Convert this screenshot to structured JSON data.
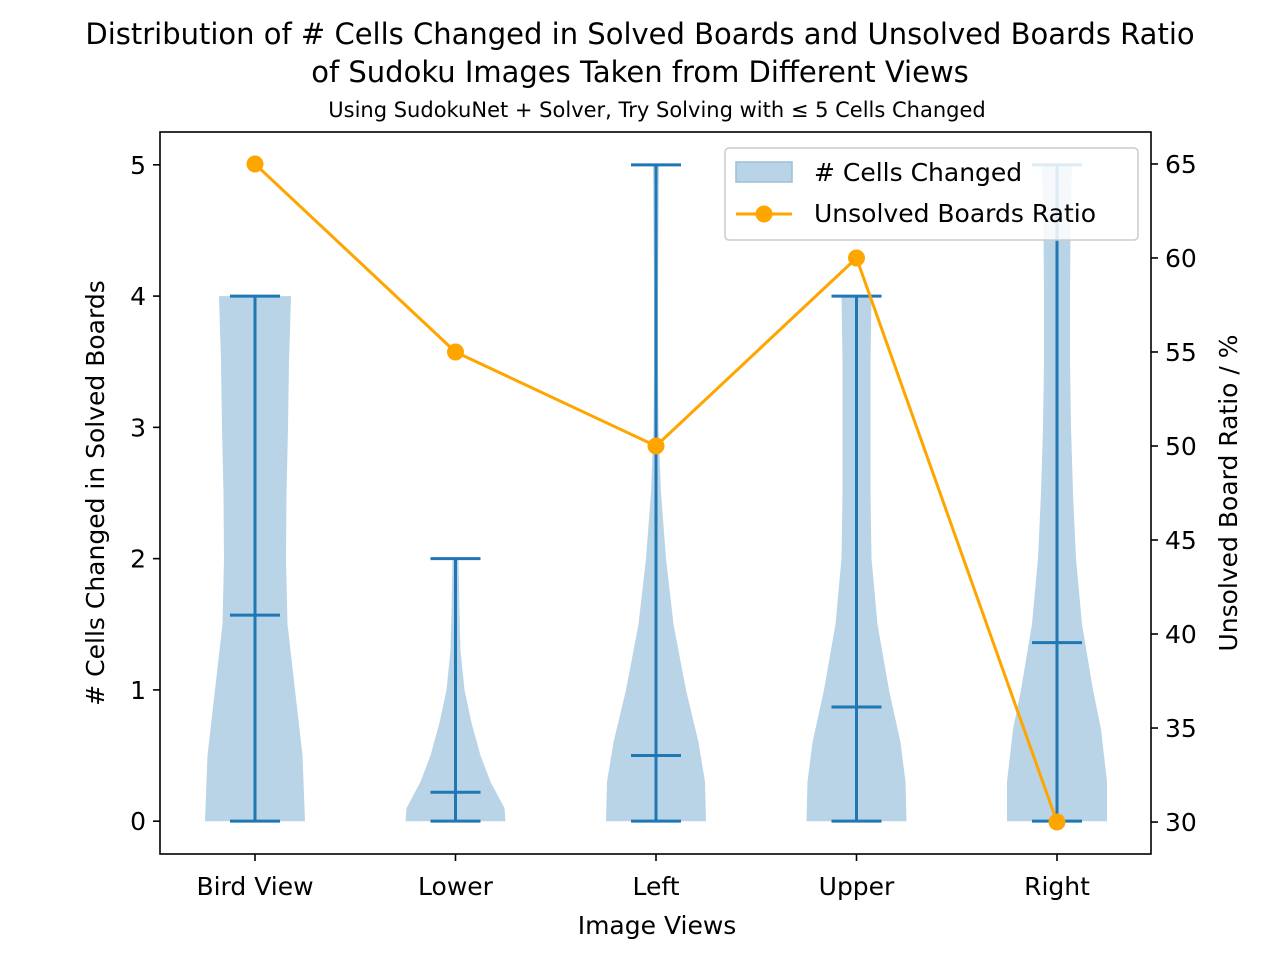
{
  "chart_data": {
    "type": "violin",
    "title": "Distribution of # Cells Changed in Solved Boards and Unsolved Boards Ratio\nof Sudoku Images Taken from Different Views",
    "subtitle": "Using SudokuNet + Solver, Try Solving with ≤ 5 Cells Changed",
    "xlabel": "Image Views",
    "ylabel_left": "# Cells Changed in Solved Boards",
    "ylabel_right": "Unsolved Board Ratio / %",
    "categories": [
      "Bird View",
      "Lower",
      "Left",
      "Upper",
      "Right"
    ],
    "ylim_left": [
      -0.25,
      5.25
    ],
    "yticks_left": [
      0,
      1,
      2,
      3,
      4,
      5
    ],
    "ylim_right": [
      28.3,
      66.7
    ],
    "yticks_right": [
      30,
      35,
      40,
      45,
      50,
      55,
      60,
      65
    ],
    "legend": {
      "placement": "top-right",
      "entries": [
        "# Cells Changed",
        "Unsolved Boards Ratio"
      ]
    },
    "grid": false,
    "violins": [
      {
        "category": "Bird View",
        "min": 0,
        "max": 4,
        "mean": 1.57,
        "profile": [
          [
            0,
            1.0
          ],
          [
            0.5,
            0.95
          ],
          [
            1.0,
            0.8
          ],
          [
            1.5,
            0.65
          ],
          [
            2.0,
            0.62
          ],
          [
            2.5,
            0.63
          ],
          [
            3.0,
            0.66
          ],
          [
            3.5,
            0.68
          ],
          [
            4.0,
            0.72
          ]
        ]
      },
      {
        "category": "Lower",
        "min": 0,
        "max": 2,
        "mean": 0.22,
        "profile": [
          [
            0,
            1.0
          ],
          [
            0.1,
            0.98
          ],
          [
            0.3,
            0.7
          ],
          [
            0.5,
            0.5
          ],
          [
            0.75,
            0.32
          ],
          [
            1.0,
            0.18
          ],
          [
            1.3,
            0.1
          ],
          [
            1.6,
            0.08
          ],
          [
            2.0,
            0.06
          ]
        ]
      },
      {
        "category": "Left",
        "min": 0,
        "max": 5,
        "mean": 0.5,
        "profile": [
          [
            0,
            1.0
          ],
          [
            0.3,
            0.98
          ],
          [
            0.6,
            0.85
          ],
          [
            1.0,
            0.6
          ],
          [
            1.5,
            0.35
          ],
          [
            2.0,
            0.2
          ],
          [
            2.5,
            0.1
          ],
          [
            3.0,
            0.05
          ],
          [
            3.5,
            0.04
          ],
          [
            4.0,
            0.04
          ],
          [
            4.5,
            0.05
          ],
          [
            5.0,
            0.06
          ]
        ]
      },
      {
        "category": "Upper",
        "min": 0,
        "max": 4,
        "mean": 0.87,
        "profile": [
          [
            0,
            1.0
          ],
          [
            0.3,
            0.98
          ],
          [
            0.6,
            0.88
          ],
          [
            1.0,
            0.65
          ],
          [
            1.5,
            0.42
          ],
          [
            2.0,
            0.3
          ],
          [
            2.5,
            0.28
          ],
          [
            3.0,
            0.28
          ],
          [
            3.5,
            0.28
          ],
          [
            4.0,
            0.3
          ]
        ]
      },
      {
        "category": "Right",
        "min": 0,
        "max": 5,
        "mean": 1.36,
        "profile": [
          [
            0,
            1.0
          ],
          [
            0.3,
            1.0
          ],
          [
            0.7,
            0.88
          ],
          [
            1.0,
            0.72
          ],
          [
            1.5,
            0.5
          ],
          [
            2.0,
            0.38
          ],
          [
            2.5,
            0.32
          ],
          [
            3.0,
            0.28
          ],
          [
            3.5,
            0.26
          ],
          [
            4.0,
            0.26
          ],
          [
            4.5,
            0.27
          ],
          [
            5.0,
            0.3
          ]
        ]
      }
    ],
    "line_series": {
      "name": "Unsolved Boards Ratio",
      "values": [
        65,
        55,
        50,
        60,
        30
      ]
    },
    "colors": {
      "violin_fill": "#b9d3e7",
      "violin_lines": "#1f77b4",
      "line": "#ffa500"
    }
  }
}
